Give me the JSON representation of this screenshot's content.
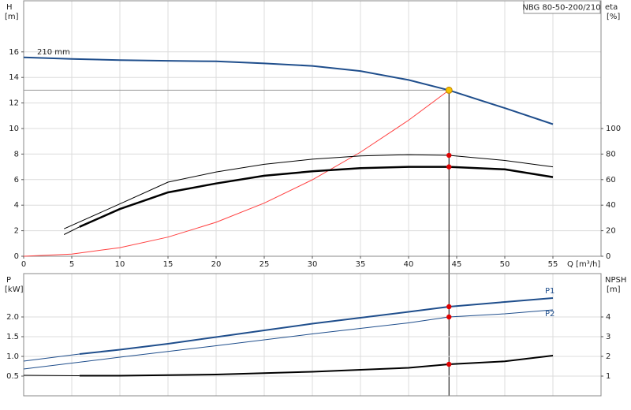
{
  "chart_data": [
    {
      "type": "line",
      "title": "NBG 80-50-200/210",
      "y_label": "H",
      "y_unit": "[m]",
      "y2_label": "eta",
      "y2_unit": "[%]",
      "x_label": "Q [m³/h]",
      "xlim": [
        0,
        60
      ],
      "xticks": [
        0,
        5,
        10,
        15,
        20,
        25,
        30,
        35,
        40,
        45,
        50,
        55
      ],
      "ylim": [
        0,
        20
      ],
      "yticks": [
        0,
        2,
        4,
        6,
        8,
        10,
        12,
        14,
        16
      ],
      "y2lim": [
        0,
        200
      ],
      "y2ticks": [
        0,
        20,
        40,
        60,
        80,
        100
      ],
      "grid": true,
      "duty_point": {
        "x": 44.2,
        "y": 13.0,
        "color": "#f5c400"
      },
      "series": [
        {
          "name": "210 mm",
          "label_at": "start",
          "color": "#1f4e8c",
          "width": 2,
          "x": [
            0,
            5,
            10,
            15,
            20,
            25,
            30,
            35,
            40,
            44.2,
            45,
            50,
            55
          ],
          "values": [
            15.57,
            15.45,
            15.35,
            15.3,
            15.26,
            15.1,
            14.9,
            14.5,
            13.8,
            13.0,
            12.8,
            11.6,
            10.34
          ]
        },
        {
          "color": "#ff4040",
          "width": 1,
          "x": [
            0,
            5,
            10,
            15,
            20,
            25,
            30,
            35,
            40,
            44.2
          ],
          "values": [
            0,
            0.17,
            0.67,
            1.5,
            2.66,
            4.16,
            5.99,
            8.15,
            10.65,
            13.0
          ]
        },
        {
          "color": "#000000",
          "width": 1,
          "axis": "y2",
          "duty_dot": "#e00000",
          "x": [
            4.2,
            10,
            15,
            20,
            25,
            30,
            35,
            40,
            44.2,
            50,
            55
          ],
          "values": [
            21.5,
            41,
            58,
            66,
            72,
            76,
            78.5,
            79.5,
            79,
            75,
            70
          ]
        },
        {
          "color": "#000000",
          "width": 1,
          "axis": "y2",
          "x": [
            4.2,
            5.8
          ],
          "values": [
            17,
            23
          ]
        },
        {
          "color": "#000000",
          "width": 2.5,
          "axis": "y2",
          "duty_dot": "#e00000",
          "x": [
            5.8,
            10,
            15,
            20,
            25,
            30,
            35,
            40,
            44.2,
            50,
            55
          ],
          "values": [
            23,
            37,
            50,
            57,
            63,
            66.5,
            69,
            70,
            70,
            68,
            62
          ]
        }
      ]
    },
    {
      "type": "line",
      "y_label": "P",
      "y_unit": "[kW]",
      "y2_label": "NPSH",
      "y2_unit": "[m]",
      "ylim": [
        0,
        3.1
      ],
      "yticks": [
        0.5,
        {
          "value": 1,
          "label": "1.0"
        },
        1.5,
        {
          "value": 2,
          "label": "2.0"
        }
      ],
      "y2lim": [
        0,
        6.2
      ],
      "y2ticks": [
        1,
        2,
        3,
        4
      ],
      "grid": true,
      "series": [
        {
          "color": "#1f4e8c",
          "width": 1,
          "x": [
            0,
            5.8
          ],
          "values": [
            0.88,
            1.06
          ]
        },
        {
          "name": "P1",
          "label_at": "end",
          "color": "#1f4e8c",
          "width": 2,
          "duty_dot": "#e00000",
          "x": [
            5.8,
            10,
            15,
            20,
            25,
            30,
            35,
            40,
            44.2,
            50,
            55
          ],
          "values": [
            1.06,
            1.17,
            1.32,
            1.49,
            1.66,
            1.83,
            1.98,
            2.13,
            2.26,
            2.38,
            2.48
          ]
        },
        {
          "name": "P2",
          "label_at": "end",
          "color": "#1f4e8c",
          "width": 1,
          "duty_dot": "#e00000",
          "x": [
            0,
            10,
            20,
            30,
            40,
            44.2,
            50,
            55
          ],
          "values": [
            0.68,
            0.98,
            1.27,
            1.57,
            1.85,
            2.0,
            2.08,
            2.18
          ]
        },
        {
          "color": "#000000",
          "width": 1,
          "axis": "y2",
          "x": [
            0,
            5.8
          ],
          "values": [
            1.04,
            1.02
          ]
        },
        {
          "color": "#000000",
          "width": 2,
          "axis": "y2",
          "duty_dot": "#e00000",
          "x": [
            5.8,
            10,
            20,
            30,
            40,
            44.2,
            50,
            55
          ],
          "values": [
            1.02,
            1.02,
            1.08,
            1.22,
            1.42,
            1.6,
            1.75,
            2.04
          ]
        }
      ]
    }
  ]
}
